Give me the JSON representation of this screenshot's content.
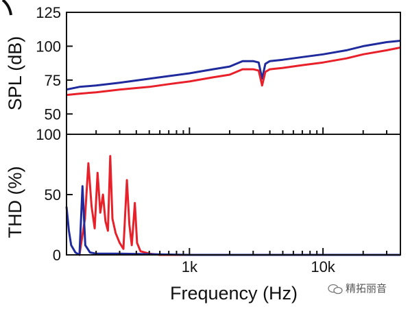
{
  "chart_data": [
    {
      "type": "line",
      "ylabel": "SPL (dB)",
      "xscale": "log",
      "xlim": [
        120,
        38000
      ],
      "ylim": [
        35,
        125
      ],
      "yticks": [
        "50",
        "75",
        "100",
        "125"
      ],
      "grid": false,
      "series": [
        {
          "color": "#1f2a9c",
          "points": [
            [
              120,
              68
            ],
            [
              150,
              70
            ],
            [
              200,
              71
            ],
            [
              300,
              73
            ],
            [
              500,
              76
            ],
            [
              700,
              78
            ],
            [
              1000,
              80
            ],
            [
              1500,
              83
            ],
            [
              2000,
              85
            ],
            [
              2500,
              89
            ],
            [
              3000,
              89
            ],
            [
              3300,
              88
            ],
            [
              3500,
              76
            ],
            [
              3700,
              87
            ],
            [
              4000,
              89
            ],
            [
              5000,
              90
            ],
            [
              7000,
              92
            ],
            [
              10000,
              94
            ],
            [
              15000,
              97
            ],
            [
              20000,
              100
            ],
            [
              30000,
              103
            ],
            [
              38000,
              104
            ]
          ]
        },
        {
          "color": "#e8202a",
          "points": [
            [
              120,
              64
            ],
            [
              150,
              65
            ],
            [
              200,
              66
            ],
            [
              300,
              68
            ],
            [
              500,
              70
            ],
            [
              700,
              72
            ],
            [
              1000,
              74
            ],
            [
              1500,
              77
            ],
            [
              2000,
              79
            ],
            [
              2500,
              83
            ],
            [
              3000,
              83
            ],
            [
              3300,
              82
            ],
            [
              3500,
              71
            ],
            [
              3700,
              81
            ],
            [
              4000,
              83
            ],
            [
              5000,
              84
            ],
            [
              7000,
              86
            ],
            [
              10000,
              88
            ],
            [
              15000,
              91
            ],
            [
              20000,
              94
            ],
            [
              30000,
              97
            ],
            [
              38000,
              99
            ]
          ]
        }
      ]
    },
    {
      "type": "line",
      "ylabel": "THD (%)",
      "xlabel": "Frequency (Hz)",
      "xscale": "log",
      "xlim": [
        120,
        38000
      ],
      "ylim": [
        0,
        100
      ],
      "yticks": [
        "0",
        "50",
        "100"
      ],
      "xticks": [
        {
          "value": 1000,
          "label": "1k"
        },
        {
          "value": 10000,
          "label": "10k"
        }
      ],
      "grid": false,
      "series": [
        {
          "color": "#e8202a",
          "points": [
            [
              150,
              0
            ],
            [
              165,
              30
            ],
            [
              175,
              76
            ],
            [
              185,
              40
            ],
            [
              195,
              22
            ],
            [
              205,
              68
            ],
            [
              215,
              35
            ],
            [
              225,
              50
            ],
            [
              235,
              28
            ],
            [
              245,
              20
            ],
            [
              255,
              82
            ],
            [
              265,
              30
            ],
            [
              280,
              18
            ],
            [
              300,
              10
            ],
            [
              320,
              5
            ],
            [
              340,
              62
            ],
            [
              355,
              25
            ],
            [
              370,
              8
            ],
            [
              390,
              43
            ],
            [
              405,
              10
            ],
            [
              430,
              3
            ],
            [
              500,
              1
            ],
            [
              600,
              0
            ],
            [
              38000,
              0
            ]
          ]
        },
        {
          "color": "#1f2a9c",
          "points": [
            [
              120,
              40
            ],
            [
              125,
              20
            ],
            [
              130,
              8
            ],
            [
              140,
              2
            ],
            [
              150,
              0
            ],
            [
              158,
              57
            ],
            [
              166,
              8
            ],
            [
              180,
              2
            ],
            [
              200,
              1
            ],
            [
              300,
              1
            ],
            [
              1000,
              0
            ],
            [
              38000,
              0
            ]
          ]
        }
      ]
    }
  ],
  "watermark": {
    "text": "精拓丽音"
  }
}
